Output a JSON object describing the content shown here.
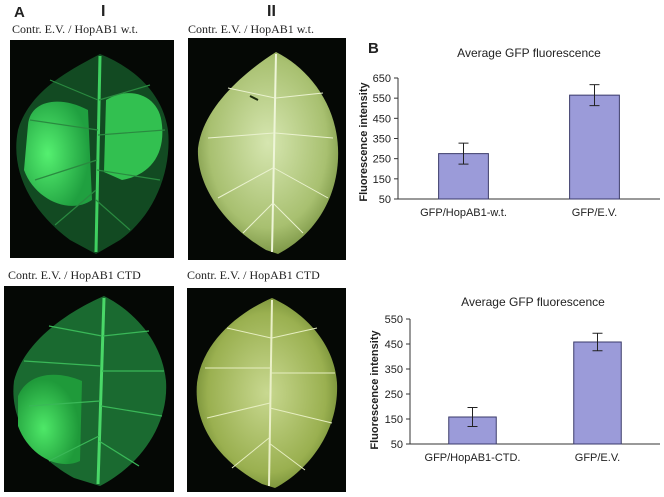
{
  "panels": {
    "a_letter": "A",
    "b_letter": "B",
    "col_i": "I",
    "col_ii": "II"
  },
  "captions": {
    "top_left": "Contr. E.V.   / HopAB1 w.t.",
    "top_right": "Contr. E.V.   / HopAB1 w.t.",
    "bottom_left": "Contr. E.V. / HopAB1 CTD",
    "bottom_right": "Contr. E.V.   / HopAB1 CTD"
  },
  "colors": {
    "bar_fill": "#9b9bd9",
    "bar_stroke": "#3a3a6a",
    "leaf_fluor_bright": "#3fe060",
    "leaf_fluor_dim": "#1f7a32",
    "leaf_white_light": "#cfe0a8",
    "leaf_white_dark": "#6f8a3a"
  },
  "chart_data": [
    {
      "type": "bar",
      "title": "Average GFP fluorescence",
      "ylabel": "Fluorescence intensity",
      "xlabel": "",
      "categories": [
        "GFP/HopAB1-w.t.",
        "GFP/E.V."
      ],
      "values": [
        275,
        565
      ],
      "errors": [
        52,
        52
      ],
      "ylim": [
        50,
        650
      ],
      "yticks": [
        50,
        150,
        250,
        350,
        450,
        550,
        650
      ],
      "grid": false
    },
    {
      "type": "bar",
      "title": "Average GFP fluorescence",
      "ylabel": "Fluorescence intensity",
      "xlabel": "",
      "categories": [
        "GFP/HopAB1-CTD.",
        "GFP/E.V."
      ],
      "values": [
        158,
        458
      ],
      "errors": [
        38,
        35
      ],
      "ylim": [
        50,
        550
      ],
      "yticks": [
        50,
        150,
        250,
        350,
        450,
        550
      ],
      "grid": false
    }
  ]
}
